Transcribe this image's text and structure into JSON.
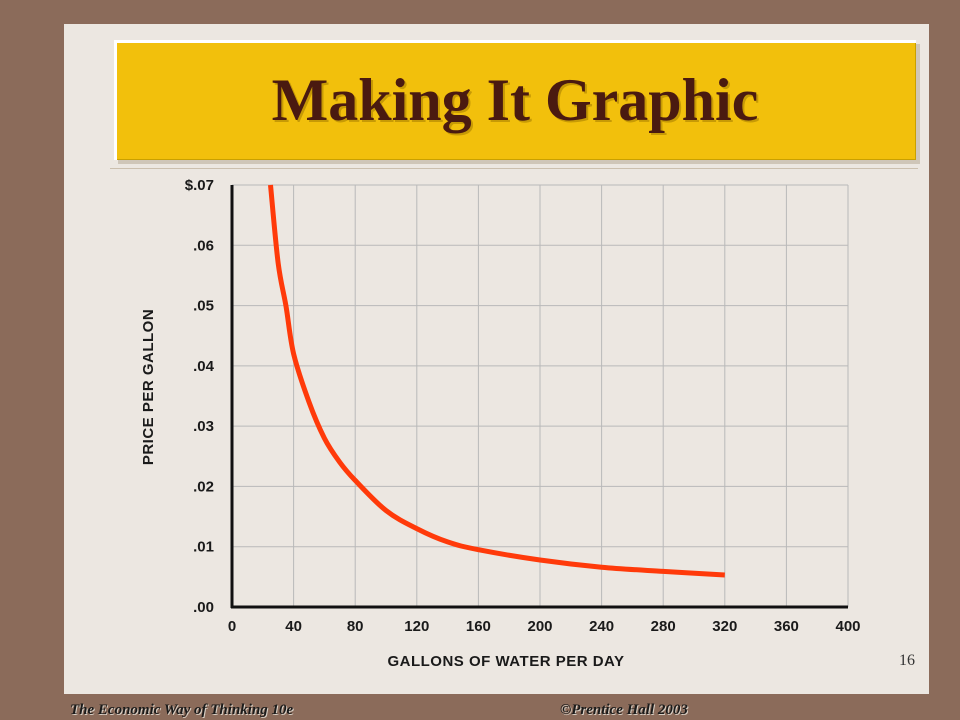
{
  "slide": {
    "title": "Making It Graphic",
    "page_number": "16"
  },
  "footer": {
    "left": "The Economic Way of Thinking 10e",
    "right": "©Prentice Hall 2003"
  },
  "colors": {
    "background": "#8b6b5a",
    "slide": "#ece7e1",
    "title_bar": "#f2c00c",
    "title_text": "#4a1a10",
    "curve": "#ff3a0a",
    "grid": "#b9b9b9"
  },
  "chart_data": {
    "type": "line",
    "title": "",
    "xlabel": "GALLONS OF WATER PER DAY",
    "ylabel": "PRICE PER GALLON",
    "xlim": [
      0,
      400
    ],
    "ylim": [
      0,
      0.07
    ],
    "x_ticks": [
      "0",
      "40",
      "80",
      "120",
      "160",
      "200",
      "240",
      "280",
      "320",
      "360",
      "400"
    ],
    "y_ticks": [
      ".00",
      ".01",
      ".02",
      ".03",
      ".04",
      ".05",
      ".06",
      "$.07"
    ],
    "grid": true,
    "legend": "none",
    "series": [
      {
        "x": [
          25,
          30,
          35,
          40,
          50,
          60,
          70,
          80,
          100,
          120,
          140,
          160,
          200,
          240,
          280,
          320
        ],
        "y": [
          0.07,
          0.057,
          0.05,
          0.042,
          0.034,
          0.028,
          0.024,
          0.021,
          0.016,
          0.013,
          0.0108,
          0.0095,
          0.0078,
          0.0066,
          0.0059,
          0.0053
        ]
      }
    ]
  }
}
